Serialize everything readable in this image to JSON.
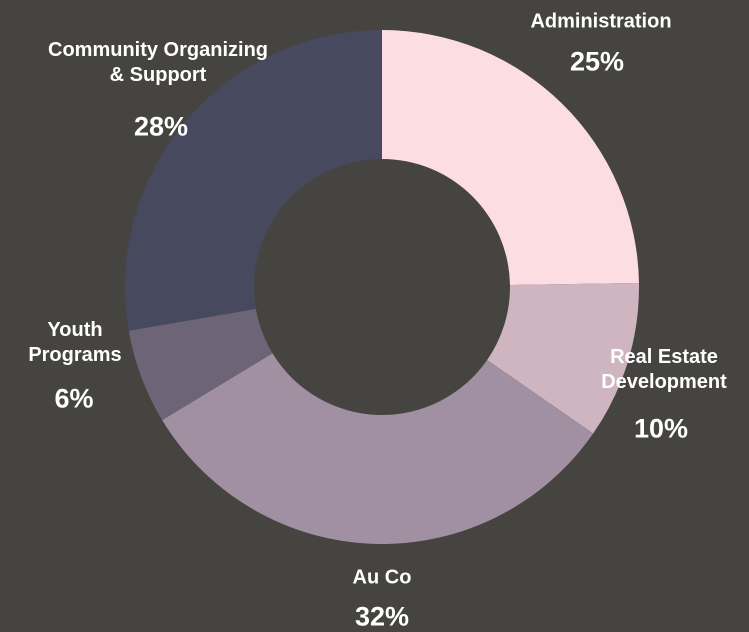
{
  "chart_data": {
    "type": "donut",
    "categories": [
      "Administration",
      "Real Estate\nDevelopment",
      "Au Co",
      "Youth\nPrograms",
      "Community Organizing\n& Support"
    ],
    "values": [
      25,
      10,
      32,
      6,
      28
    ],
    "value_labels": [
      "25%",
      "10%",
      "32%",
      "6%",
      "28%"
    ],
    "colors": [
      "#fcdde2",
      "#cfb5c0",
      "#a18fa2",
      "#6d6477",
      "#474a5f"
    ]
  }
}
